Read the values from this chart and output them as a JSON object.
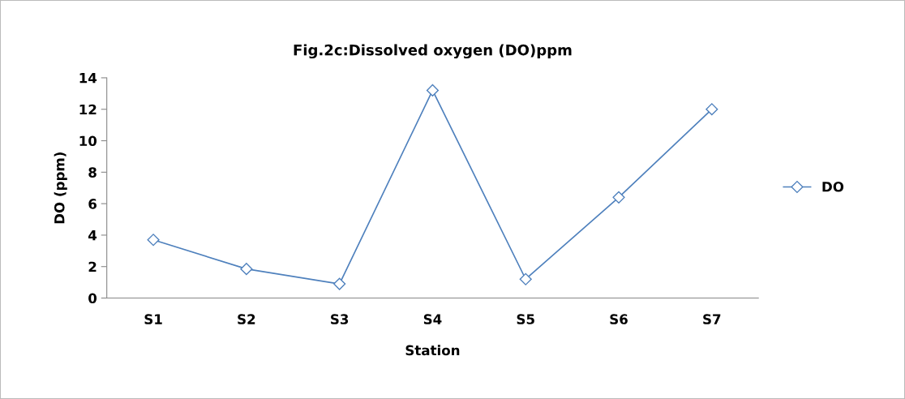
{
  "chart_data": {
    "type": "line",
    "title": "Fig.2c:Dissolved oxygen (DO)ppm",
    "xlabel": "Station",
    "ylabel": "DO (ppm)",
    "categories": [
      "S1",
      "S2",
      "S3",
      "S4",
      "S5",
      "S6",
      "S7"
    ],
    "series": [
      {
        "name": "DO",
        "color": "#4f81bd",
        "values": [
          3.7,
          1.85,
          0.9,
          13.2,
          1.2,
          6.4,
          12.0
        ]
      }
    ],
    "ylim": [
      0,
      14
    ],
    "yticks": [
      0,
      2,
      4,
      6,
      8,
      10,
      12,
      14
    ],
    "grid": false,
    "legend": "right",
    "marker": "diamond",
    "line_style": "solid"
  }
}
